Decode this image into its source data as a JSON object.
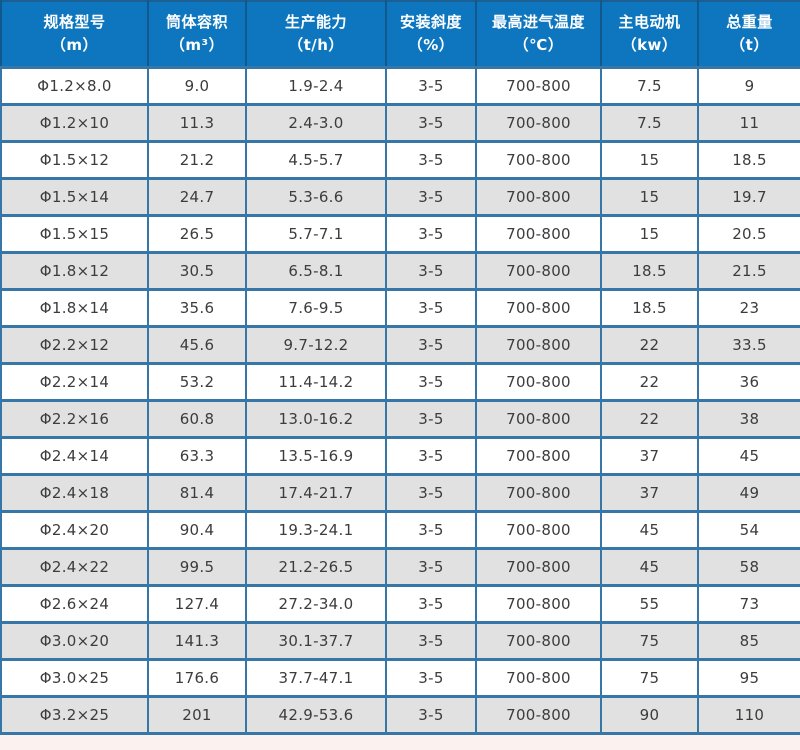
{
  "table": {
    "columns": [
      {
        "label": "规格型号",
        "unit": "（m）"
      },
      {
        "label": "筒体容积",
        "unit": "（m³）"
      },
      {
        "label": "生产能力",
        "unit": "（t/h）"
      },
      {
        "label": "安装斜度",
        "unit": "（%）"
      },
      {
        "label": "最高进气温度",
        "unit": "（℃）"
      },
      {
        "label": "主电动机",
        "unit": "（kw）"
      },
      {
        "label": "总重量",
        "unit": "（t）"
      }
    ],
    "rows": [
      [
        "Φ1.2×8.0",
        "9.0",
        "1.9-2.4",
        "3-5",
        "700-800",
        "7.5",
        "9"
      ],
      [
        "Φ1.2×10",
        "11.3",
        "2.4-3.0",
        "3-5",
        "700-800",
        "7.5",
        "11"
      ],
      [
        "Φ1.5×12",
        "21.2",
        "4.5-5.7",
        "3-5",
        "700-800",
        "15",
        "18.5"
      ],
      [
        "Φ1.5×14",
        "24.7",
        "5.3-6.6",
        "3-5",
        "700-800",
        "15",
        "19.7"
      ],
      [
        "Φ1.5×15",
        "26.5",
        "5.7-7.1",
        "3-5",
        "700-800",
        "15",
        "20.5"
      ],
      [
        "Φ1.8×12",
        "30.5",
        "6.5-8.1",
        "3-5",
        "700-800",
        "18.5",
        "21.5"
      ],
      [
        "Φ1.8×14",
        "35.6",
        "7.6-9.5",
        "3-5",
        "700-800",
        "18.5",
        "23"
      ],
      [
        "Φ2.2×12",
        "45.6",
        "9.7-12.2",
        "3-5",
        "700-800",
        "22",
        "33.5"
      ],
      [
        "Φ2.2×14",
        "53.2",
        "11.4-14.2",
        "3-5",
        "700-800",
        "22",
        "36"
      ],
      [
        "Φ2.2×16",
        "60.8",
        "13.0-16.2",
        "3-5",
        "700-800",
        "22",
        "38"
      ],
      [
        "Φ2.4×14",
        "63.3",
        "13.5-16.9",
        "3-5",
        "700-800",
        "37",
        "45"
      ],
      [
        "Φ2.4×18",
        "81.4",
        "17.4-21.7",
        "3-5",
        "700-800",
        "37",
        "49"
      ],
      [
        "Φ2.4×20",
        "90.4",
        "19.3-24.1",
        "3-5",
        "700-800",
        "45",
        "54"
      ],
      [
        "Φ2.4×22",
        "99.5",
        "21.2-26.5",
        "3-5",
        "700-800",
        "45",
        "58"
      ],
      [
        "Φ2.6×24",
        "127.4",
        "27.2-34.0",
        "3-5",
        "700-800",
        "55",
        "73"
      ],
      [
        "Φ3.0×20",
        "141.3",
        "30.1-37.7",
        "3-5",
        "700-800",
        "75",
        "85"
      ],
      [
        "Φ3.0×25",
        "176.6",
        "37.7-47.1",
        "3-5",
        "700-800",
        "75",
        "95"
      ],
      [
        "Φ3.2×25",
        "201",
        "42.9-53.6",
        "3-5",
        "700-800",
        "90",
        "110"
      ]
    ]
  },
  "colors": {
    "header_bg": "#0d76bf",
    "header_text": "#ffffff",
    "border": "#3677a8",
    "outer_border": "#1c5f92",
    "header_sep": "#11598c",
    "row_bg": "#ffffff",
    "row_alt_bg": "#e1e1e1",
    "cell_text": "#3c3c3c",
    "page_bg": "#fbf1ef"
  }
}
